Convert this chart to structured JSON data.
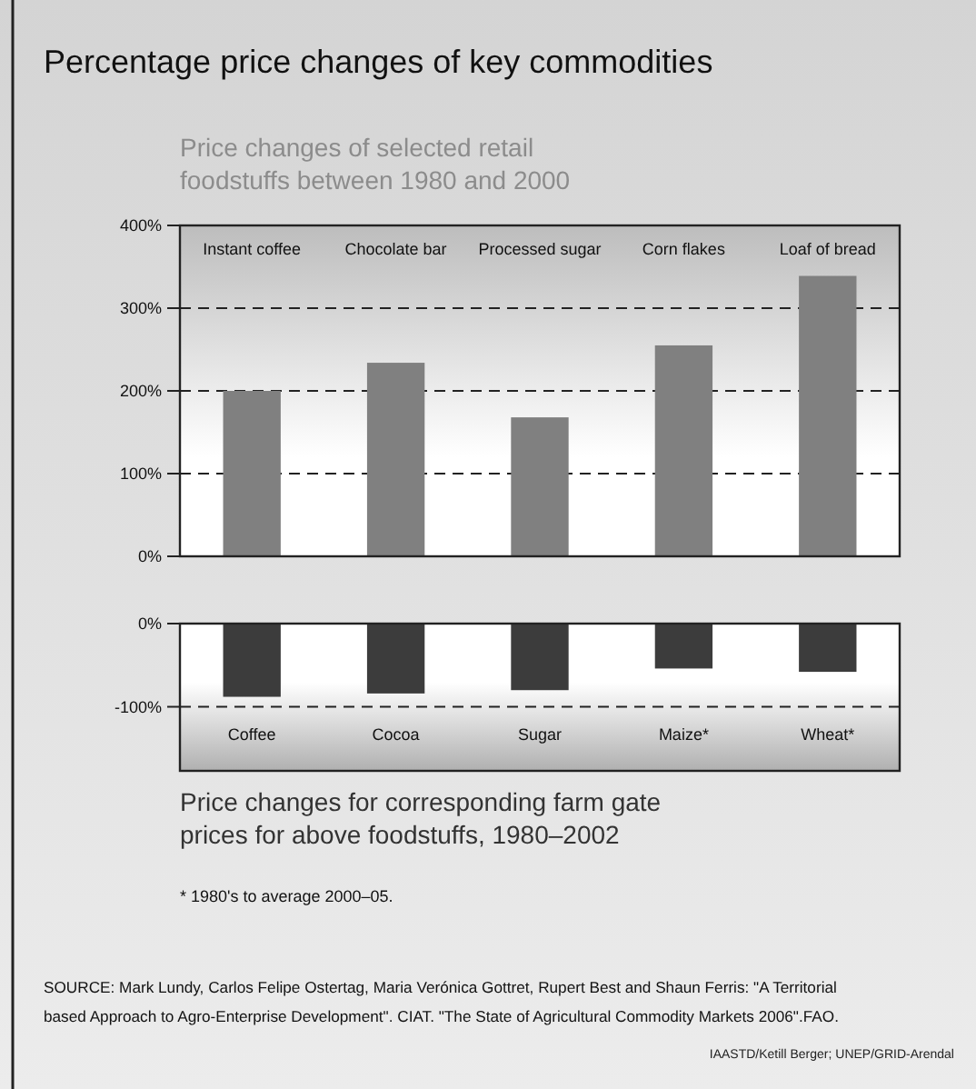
{
  "chart_data": [
    {
      "type": "bar",
      "title": "Percentage price changes of key commodities",
      "subtitle": "Price changes of selected retail foodstuffs between 1980 and 2000",
      "categories": [
        "Instant coffee",
        "Chocolate bar",
        "Processed sugar",
        "Corn flakes",
        "Loaf of bread"
      ],
      "values": [
        200,
        234,
        168,
        255,
        339
      ],
      "color": "#808080",
      "ylim": [
        0,
        400
      ],
      "yticks": [
        {
          "value": 0,
          "label": "0%"
        },
        {
          "value": 100,
          "label": "100%"
        },
        {
          "value": 200,
          "label": "200%"
        },
        {
          "value": 300,
          "label": "300%"
        },
        {
          "value": 400,
          "label": "400%"
        }
      ],
      "grid": "y",
      "line_style": "dashed"
    },
    {
      "type": "bar",
      "subtitle": "Price changes for corresponding farm gate prices for above foodstuffs, 1980–2002",
      "categories": [
        "Coffee",
        "Cocoa",
        "Sugar",
        "Maize*",
        "Wheat*"
      ],
      "values": [
        -88,
        -84,
        -80,
        -54,
        -58
      ],
      "color": "#3c3c3c",
      "ylim": [
        -177,
        0
      ],
      "yticks": [
        {
          "value": -100,
          "label": "-100%"
        },
        {
          "value": 0,
          "label": "0%"
        }
      ],
      "grid": "y",
      "line_style": "dashed",
      "annotations": [
        "* 1980's to average 2000–05.",
        "SOURCE: Mark Lundy, Carlos Felipe Ostertag, Maria Verónica Gottret, Rupert Best and Shaun Ferris: \"A Territorial based Approach to Agro-Enterprise Development\". CIAT. \"The State of Agricultural Commodity Markets 2006\".FAO.",
        "IAASTD/Ketill Berger; UNEP/GRID-Arendal"
      ]
    }
  ]
}
